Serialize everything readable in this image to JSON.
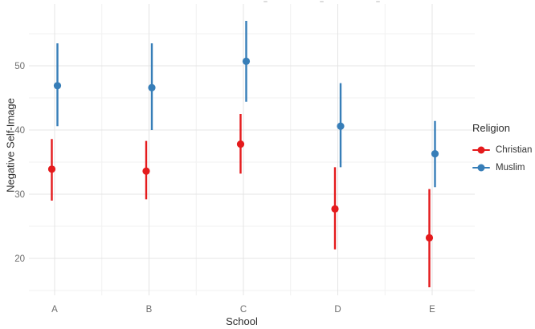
{
  "chart_data": {
    "type": "pointrange",
    "title": "",
    "xlabel": "School",
    "ylabel": "Negative Self-Image",
    "categories": [
      "A",
      "B",
      "C",
      "D",
      "E"
    ],
    "y_ticks": [
      20,
      30,
      40,
      50
    ],
    "y_minor_ticks": [
      15,
      25,
      35,
      45,
      55
    ],
    "ylim": [
      14,
      59.5
    ],
    "grid": "on",
    "legend_position": "right",
    "legend_title": "Religion",
    "series": [
      {
        "name": "Christian",
        "color": "#E41A1C",
        "means": [
          33.9,
          33.6,
          37.8,
          27.7,
          23.2
        ],
        "lower": [
          29.0,
          29.2,
          33.2,
          21.4,
          15.5
        ],
        "upper": [
          38.6,
          38.3,
          42.5,
          34.2,
          30.8
        ]
      },
      {
        "name": "Muslim",
        "color": "#377EB8",
        "means": [
          46.9,
          46.6,
          50.7,
          40.6,
          36.3
        ],
        "lower": [
          40.6,
          40.0,
          44.4,
          34.2,
          31.1
        ],
        "upper": [
          53.5,
          53.5,
          57.0,
          47.3,
          41.4
        ]
      }
    ],
    "colors": {
      "grid_major": "#e4e4e4",
      "grid_minor": "#f1f1f1",
      "tick_label": "#6e6e6e",
      "axis_title": "#2b2b2b"
    }
  }
}
